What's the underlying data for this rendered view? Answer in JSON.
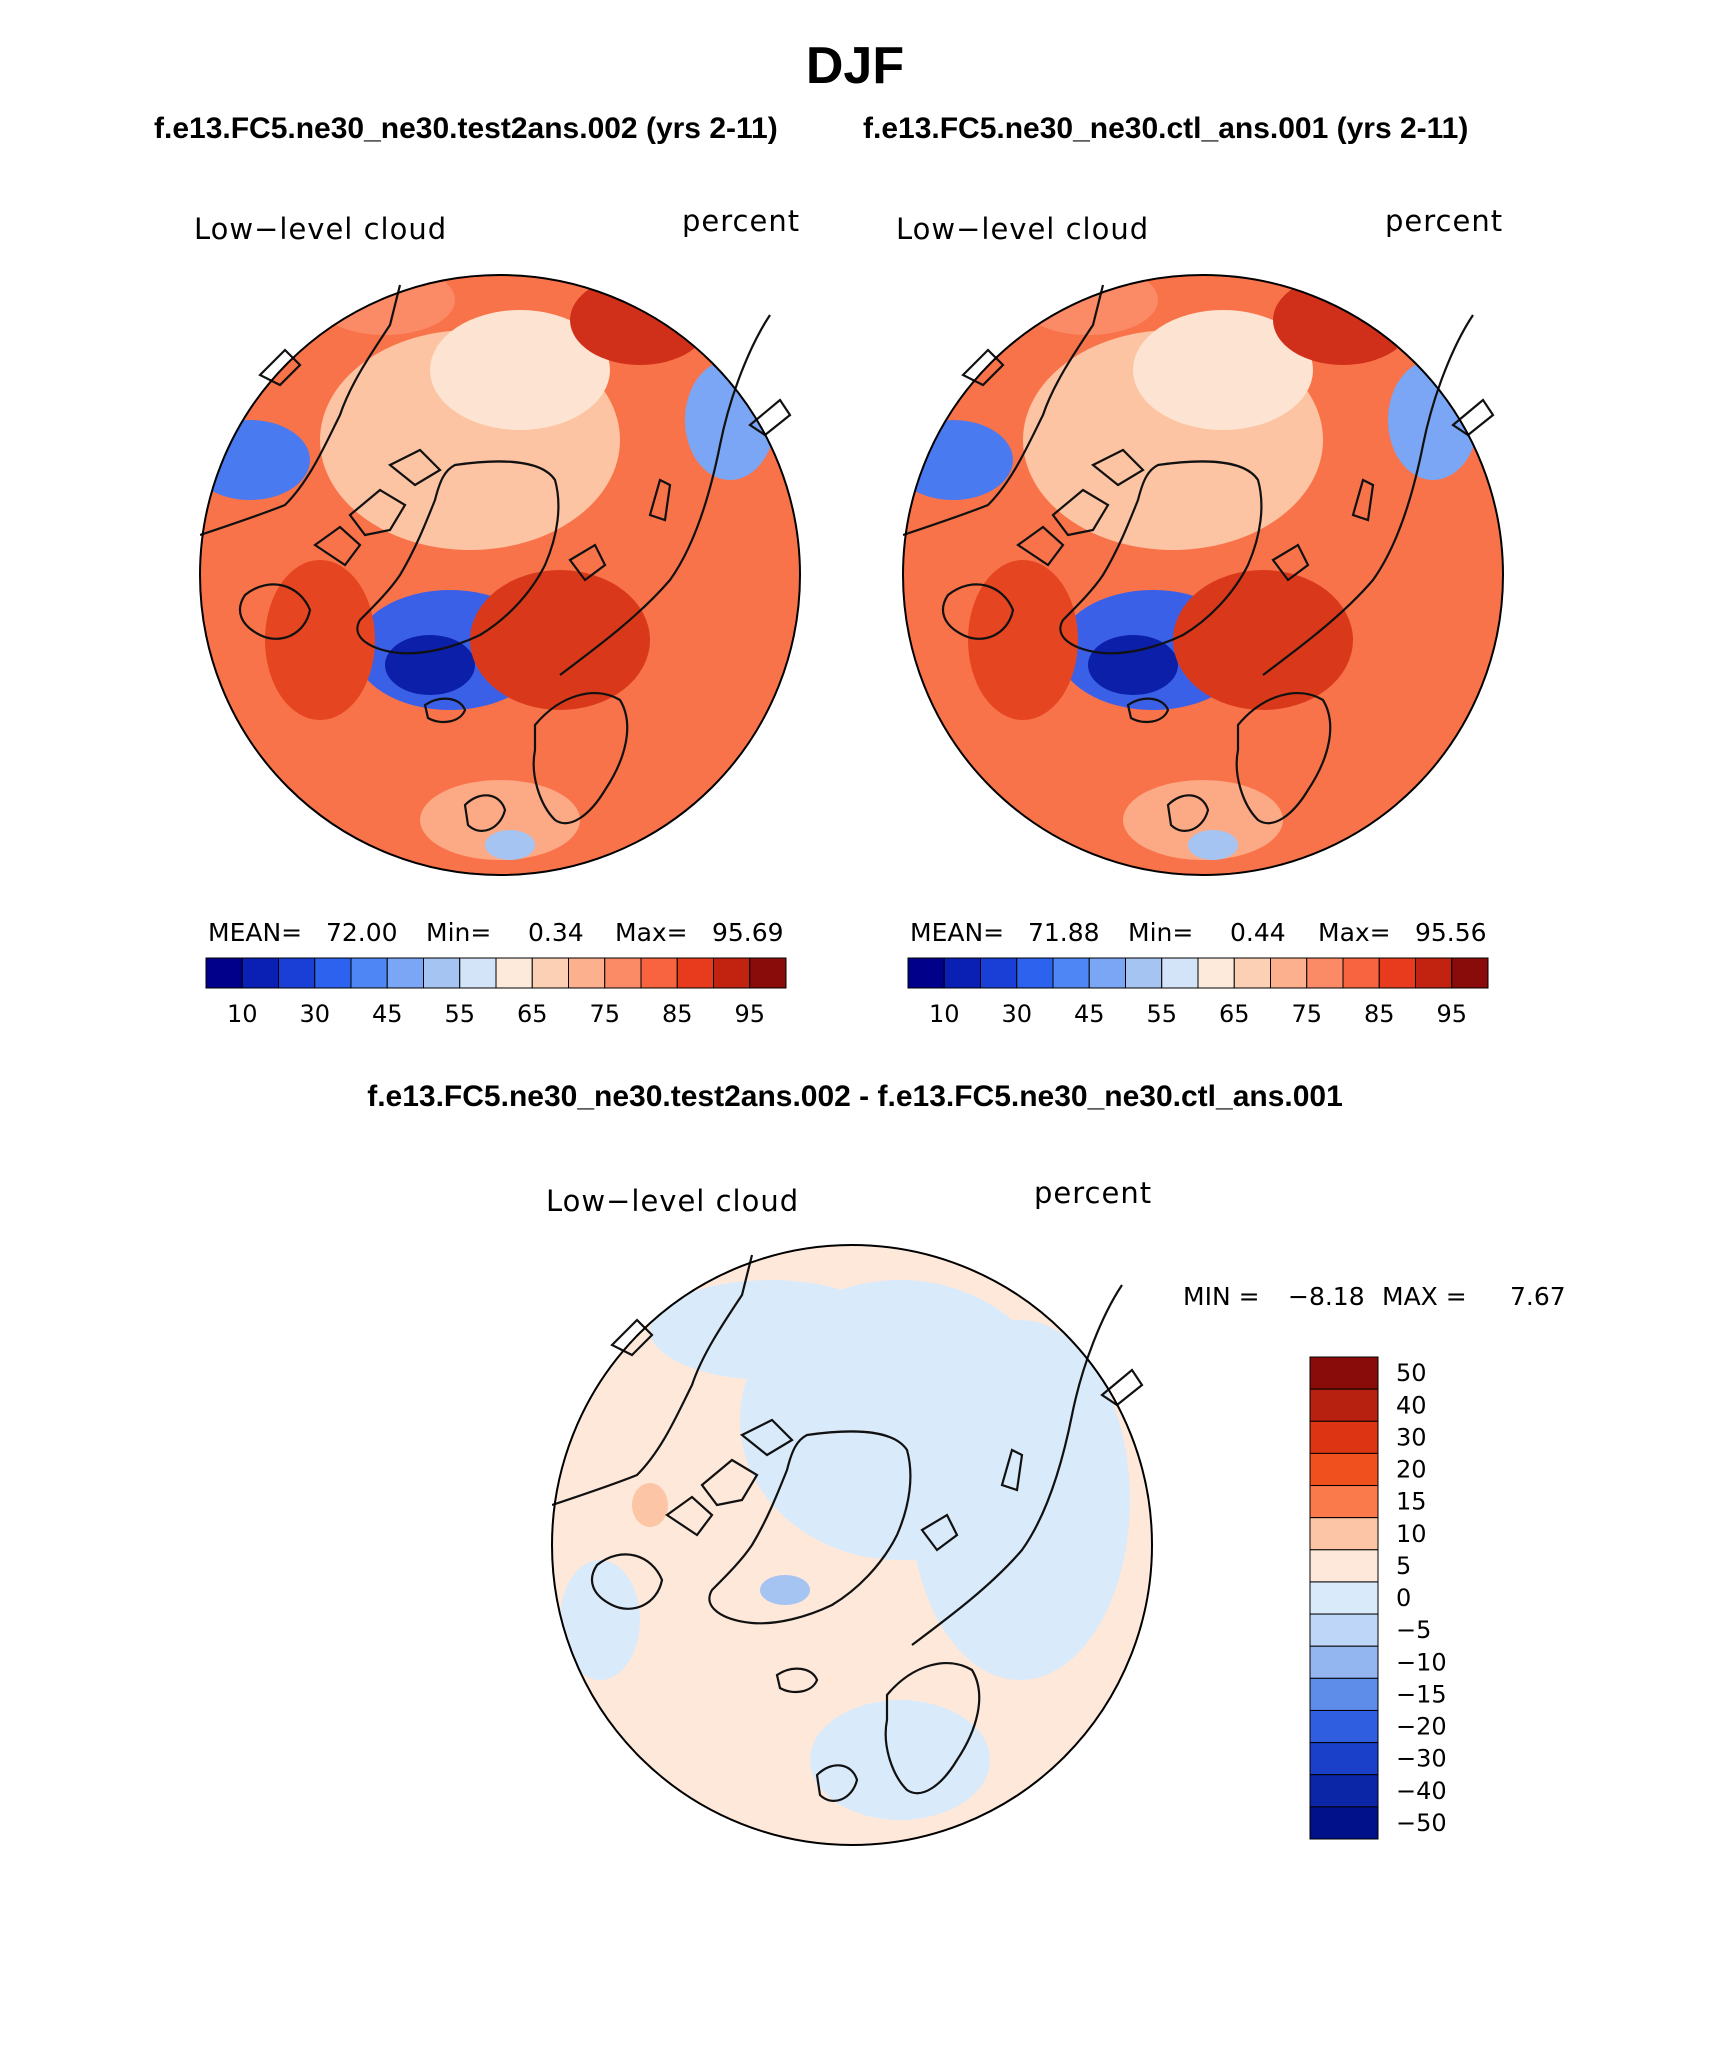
{
  "title": "DJF",
  "subtitles": {
    "left": "f.e13.FC5.ne30_ne30.test2ans.002 (yrs 2-11)",
    "right": "f.e13.FC5.ne30_ne30.ctl_ans.001 (yrs 2-11)"
  },
  "diff_title": "f.e13.FC5.ne30_ne30.test2ans.002 - f.e13.FC5.ne30_ne30.ctl_ans.001",
  "panels": [
    {
      "variable": "Low−level cloud",
      "units": "percent",
      "stats": {
        "mean_label": "MEAN=",
        "mean": "72.00",
        "min_label": "Min=",
        "min": "0.34",
        "max_label": "Max=",
        "max": "95.69"
      }
    },
    {
      "variable": "Low−level cloud",
      "units": "percent",
      "stats": {
        "mean_label": "MEAN=",
        "mean": "71.88",
        "min_label": "Min=",
        "min": "0.44",
        "max_label": "Max=",
        "max": "95.56"
      }
    },
    {
      "variable": "Low−level cloud",
      "units": "percent",
      "stats": {
        "min_label": "MIN =",
        "min": "−8.18",
        "max_label": "MAX =",
        "max": "7.67"
      }
    }
  ],
  "colorbar_abs": {
    "colors": [
      "#00008b",
      "#0a1fb4",
      "#1a3fd6",
      "#2d62ee",
      "#4f86f5",
      "#7aa6f5",
      "#a6c4f2",
      "#d3e3f8",
      "#fdeadb",
      "#fcd0b5",
      "#fcb08e",
      "#fb8a66",
      "#f7643f",
      "#e83b1d",
      "#c22210",
      "#8a0c0a"
    ],
    "tick_labels": [
      "10",
      "30",
      "45",
      "55",
      "65",
      "75",
      "85",
      "95"
    ]
  },
  "colorbar_diff": {
    "colors": [
      "#8a0c0a",
      "#b72110",
      "#dd3513",
      "#f0501e",
      "#fa7a4c",
      "#fcc6a6",
      "#fde8da",
      "#d9eafb",
      "#bed6f7",
      "#93b5f0",
      "#5e8ce9",
      "#2f5ee0",
      "#1a3fc8",
      "#0c26a8",
      "#001189"
    ],
    "tick_labels": [
      "50",
      "40",
      "30",
      "20",
      "15",
      "10",
      "5",
      "0",
      "−5",
      "−10",
      "−15",
      "−20",
      "−30",
      "−40",
      "−50"
    ]
  }
}
